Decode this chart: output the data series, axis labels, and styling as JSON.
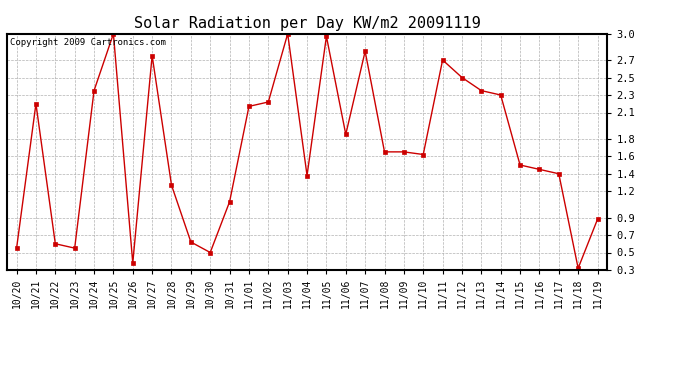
{
  "title": "Solar Radiation per Day KW/m2 20091119",
  "copyright": "Copyright 2009 Cartronics.com",
  "labels": [
    "10/20",
    "10/21",
    "10/22",
    "10/23",
    "10/24",
    "10/25",
    "10/26",
    "10/27",
    "10/28",
    "10/29",
    "10/30",
    "10/31",
    "11/01",
    "11/02",
    "11/03",
    "11/04",
    "11/05",
    "11/06",
    "11/07",
    "11/08",
    "11/09",
    "11/10",
    "11/11",
    "11/12",
    "11/13",
    "11/14",
    "11/15",
    "11/16",
    "11/17",
    "11/18",
    "11/19"
  ],
  "values": [
    0.55,
    2.2,
    0.6,
    0.55,
    2.35,
    3.0,
    0.38,
    2.75,
    1.27,
    0.62,
    0.5,
    1.08,
    2.17,
    2.22,
    3.0,
    1.38,
    2.97,
    1.85,
    2.8,
    1.65,
    1.65,
    1.62,
    2.7,
    2.5,
    2.35,
    2.3,
    1.5,
    1.45,
    1.4,
    0.32,
    0.88
  ],
  "line_color": "#cc0000",
  "marker": "s",
  "marker_size": 3,
  "bg_color": "#ffffff",
  "plot_bg_color": "#ffffff",
  "grid_color": "#aaaaaa",
  "ylim": [
    0.3,
    3.0
  ],
  "yticks": [
    3.0,
    2.7,
    2.5,
    2.3,
    2.1,
    1.8,
    1.6,
    1.4,
    1.2,
    0.9,
    0.7,
    0.5,
    0.3
  ],
  "title_fontsize": 11,
  "tick_fontsize": 7,
  "copyright_fontsize": 6.5
}
